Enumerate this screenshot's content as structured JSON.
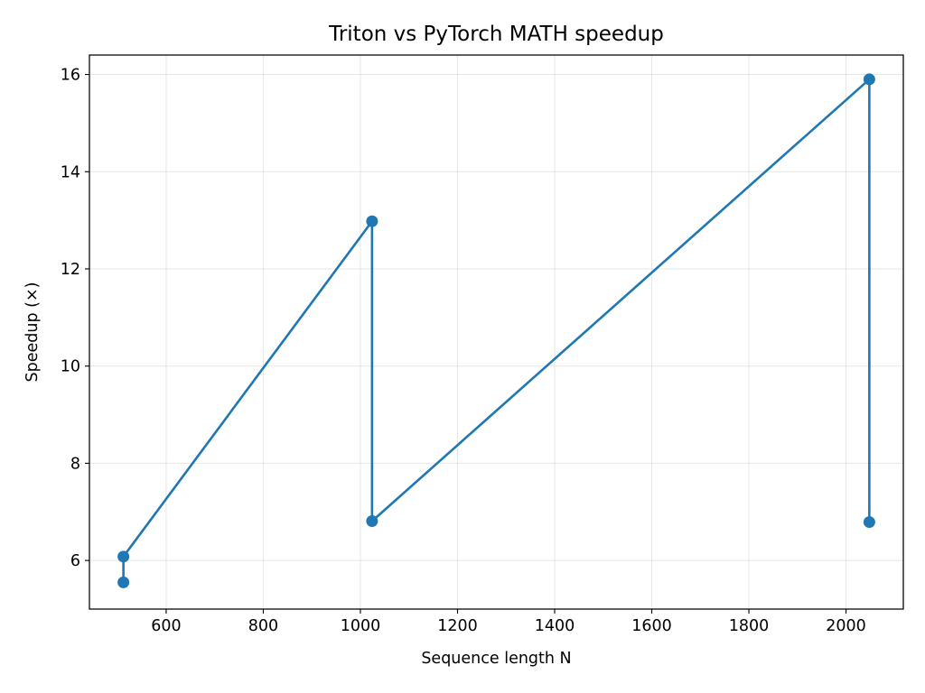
{
  "chart_data": {
    "type": "line",
    "title": "Triton vs PyTorch MATH speedup",
    "xlabel": "Sequence length N",
    "ylabel": "Speedup (×)",
    "xlim": [
      442,
      2118
    ],
    "ylim": [
      5.0,
      16.4
    ],
    "xticks": [
      600,
      800,
      1000,
      1200,
      1400,
      1600,
      1800,
      2000
    ],
    "yticks": [
      6,
      8,
      10,
      12,
      14,
      16
    ],
    "grid": true,
    "series": [
      {
        "color": "#1f77b4",
        "marker": "circle",
        "x": [
          512,
          512,
          1024,
          1024,
          2048,
          2048
        ],
        "y": [
          5.55,
          6.08,
          12.98,
          6.81,
          15.9,
          6.79
        ]
      }
    ]
  }
}
